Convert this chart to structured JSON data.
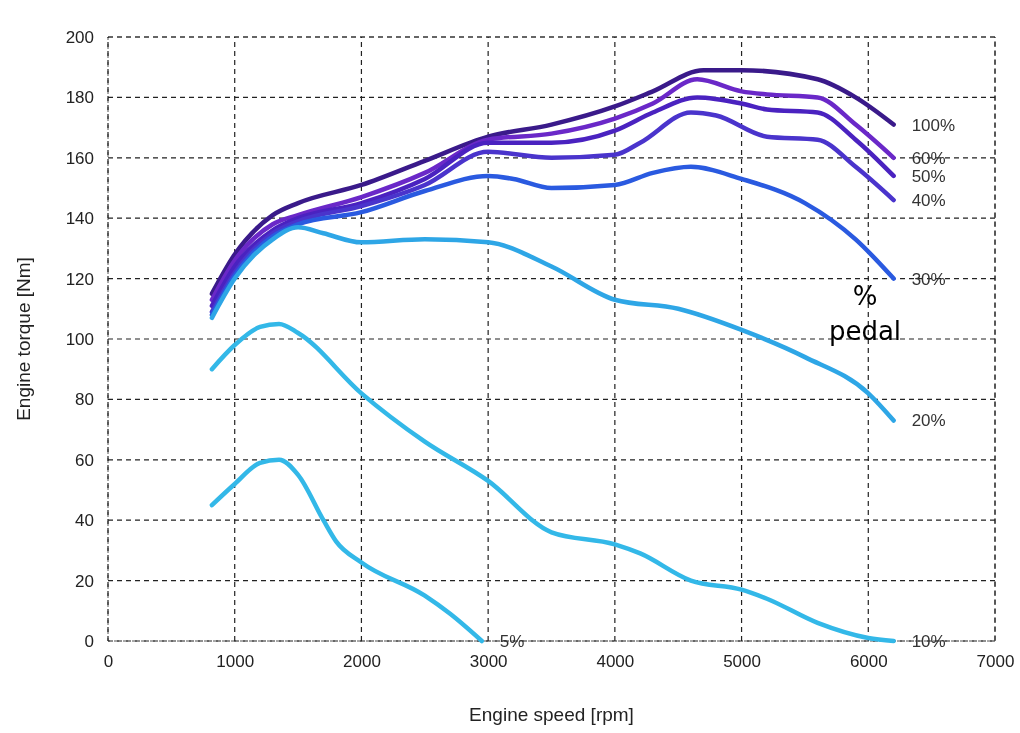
{
  "chart_data": {
    "type": "line",
    "xlabel": "Engine speed [rpm]",
    "ylabel": "Engine torque [Nm]",
    "xlim": [
      0,
      7000
    ],
    "ylim": [
      0,
      200
    ],
    "xticks": [
      0,
      1000,
      2000,
      3000,
      4000,
      5000,
      6000,
      7000
    ],
    "yticks": [
      0,
      20,
      40,
      60,
      80,
      100,
      120,
      140,
      160,
      180,
      200
    ],
    "grid": true,
    "line_style": "solid",
    "annotations": [
      "% pedal"
    ],
    "series": [
      {
        "name": "100%",
        "color": "#3a1a8a",
        "x": [
          820,
          1000,
          1300,
          1500,
          2000,
          2500,
          3000,
          3500,
          4000,
          4300,
          4700,
          5000,
          5600,
          5900,
          6200
        ],
        "values": [
          115,
          128,
          141,
          145,
          151,
          159,
          167,
          171,
          177,
          182,
          189,
          189,
          186,
          180,
          171
        ]
      },
      {
        "name": "60%",
        "color": "#6a28c8",
        "x": [
          820,
          1000,
          1300,
          1500,
          2000,
          2500,
          3000,
          3500,
          4000,
          4300,
          4650,
          5000,
          5200,
          5600,
          5900,
          6200
        ],
        "values": [
          113,
          126,
          138,
          141,
          147,
          155,
          166,
          168,
          173,
          178,
          186,
          182,
          181,
          180,
          171,
          160
        ]
      },
      {
        "name": "50%",
        "color": "#4a22c0",
        "x": [
          820,
          1000,
          1300,
          1500,
          2000,
          2500,
          3000,
          3500,
          4000,
          4300,
          4650,
          5000,
          5200,
          5600,
          5900,
          6200
        ],
        "values": [
          111,
          124,
          136,
          140,
          145,
          153,
          165,
          165,
          169,
          175,
          180,
          178,
          176,
          175,
          166,
          154
        ]
      },
      {
        "name": "40%",
        "color": "#4a34cc",
        "x": [
          820,
          1000,
          1300,
          1500,
          2000,
          2500,
          3000,
          3500,
          4000,
          4200,
          4600,
          4800,
          5200,
          5600,
          5900,
          6200
        ],
        "values": [
          109,
          122,
          135,
          139,
          144,
          151,
          162,
          160,
          161,
          165,
          175,
          174,
          167,
          166,
          157,
          146
        ]
      },
      {
        "name": "30%",
        "color": "#2a5ae0",
        "x": [
          820,
          1000,
          1300,
          1500,
          2000,
          2500,
          3000,
          3200,
          3500,
          4000,
          4300,
          4600,
          5000,
          5500,
          5900,
          6200
        ],
        "values": [
          108,
          121,
          134,
          138,
          142,
          149,
          154,
          153,
          150,
          151,
          155,
          157,
          153,
          145,
          133,
          120
        ]
      },
      {
        "name": "20%",
        "color": "#2ea6e6",
        "x": [
          820,
          1000,
          1300,
          1500,
          1700,
          2000,
          2500,
          3000,
          3500,
          4000,
          4500,
          5000,
          5500,
          6000,
          6200
        ],
        "values": [
          107,
          120,
          133,
          137,
          135,
          132,
          133,
          132,
          124,
          113,
          110,
          103,
          94,
          82,
          73
        ]
      },
      {
        "name": "10%",
        "color": "#33b8e8",
        "x": [
          820,
          1000,
          1200,
          1350,
          1500,
          2000,
          2500,
          3000,
          3500,
          4000,
          4200,
          4600,
          5000,
          5200,
          5600,
          6000,
          6200
        ],
        "values": [
          90,
          98,
          104,
          105,
          102,
          82,
          66,
          53,
          36,
          32,
          29,
          20,
          17,
          14,
          6,
          1,
          0
        ]
      },
      {
        "name": "5%",
        "color": "#33b8e8",
        "x": [
          820,
          1000,
          1200,
          1350,
          1500,
          1700,
          1800,
          2000,
          2500,
          2700,
          2950
        ],
        "values": [
          45,
          52,
          59,
          60,
          55,
          40,
          33,
          26,
          15,
          9,
          0
        ]
      }
    ]
  }
}
